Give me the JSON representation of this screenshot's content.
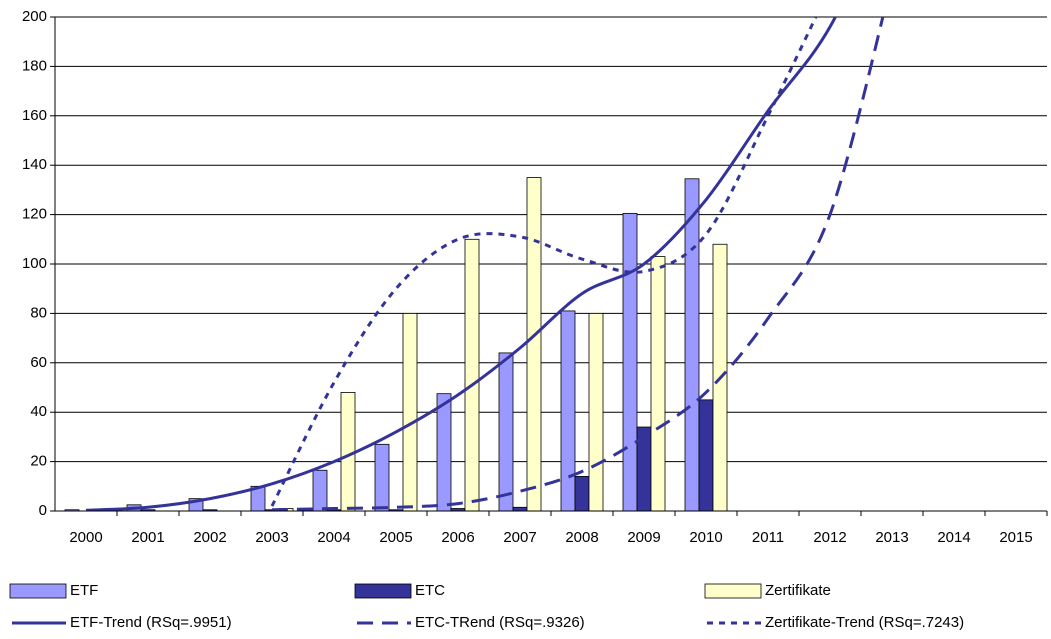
{
  "chart_data": {
    "type": "bar",
    "categories": [
      "2000",
      "2001",
      "2002",
      "2003",
      "2004",
      "2005",
      "2006",
      "2007",
      "2008",
      "2009",
      "2010",
      "2011",
      "2012",
      "2013",
      "2014",
      "2015"
    ],
    "ylim": [
      0,
      200
    ],
    "yticks": [
      0,
      20,
      40,
      60,
      80,
      100,
      120,
      140,
      160,
      180,
      200
    ],
    "grid": true,
    "series": [
      {
        "name": "ETF",
        "type": "bar",
        "color": "#9999ff",
        "values": [
          0.5,
          2.5,
          5,
          10,
          16.5,
          27,
          47.5,
          64,
          81,
          120.5,
          134.5,
          null,
          null,
          null,
          null,
          null
        ]
      },
      {
        "name": "ETC",
        "type": "bar",
        "color": "#333399",
        "values": [
          0,
          0.5,
          0.5,
          0.5,
          0.5,
          0.5,
          1,
          1.5,
          14,
          34,
          45,
          null,
          null,
          null,
          null,
          null
        ]
      },
      {
        "name": "Zertifikate",
        "type": "bar",
        "color": "#ffffcc",
        "values": [
          0,
          0,
          0,
          1,
          48,
          80,
          110,
          135,
          80,
          103,
          108,
          null,
          null,
          null,
          null,
          null
        ]
      },
      {
        "name": "ETF-Trend (RSq=.9951)",
        "type": "line",
        "line_style": "solid",
        "color": "#333399",
        "values": [
          0.3,
          1.5,
          5,
          11,
          20,
          32,
          47,
          66,
          88,
          100,
          126,
          162,
          196,
          250,
          null,
          null
        ]
      },
      {
        "name": "ETC-TRend (RSq=.9326)",
        "type": "line",
        "line_style": "dash",
        "color": "#333399",
        "values": [
          null,
          null,
          null,
          0.5,
          1,
          1.5,
          3,
          8,
          16,
          30,
          48,
          78,
          120,
          215,
          null,
          null
        ]
      },
      {
        "name": "Zertifikate-Trend (RSq=.7243)",
        "type": "line",
        "line_style": "dot",
        "color": "#333399",
        "values": [
          null,
          null,
          null,
          2,
          52,
          90,
          110,
          111,
          102,
          97,
          112,
          160,
          212,
          null,
          null,
          null
        ]
      }
    ]
  }
}
